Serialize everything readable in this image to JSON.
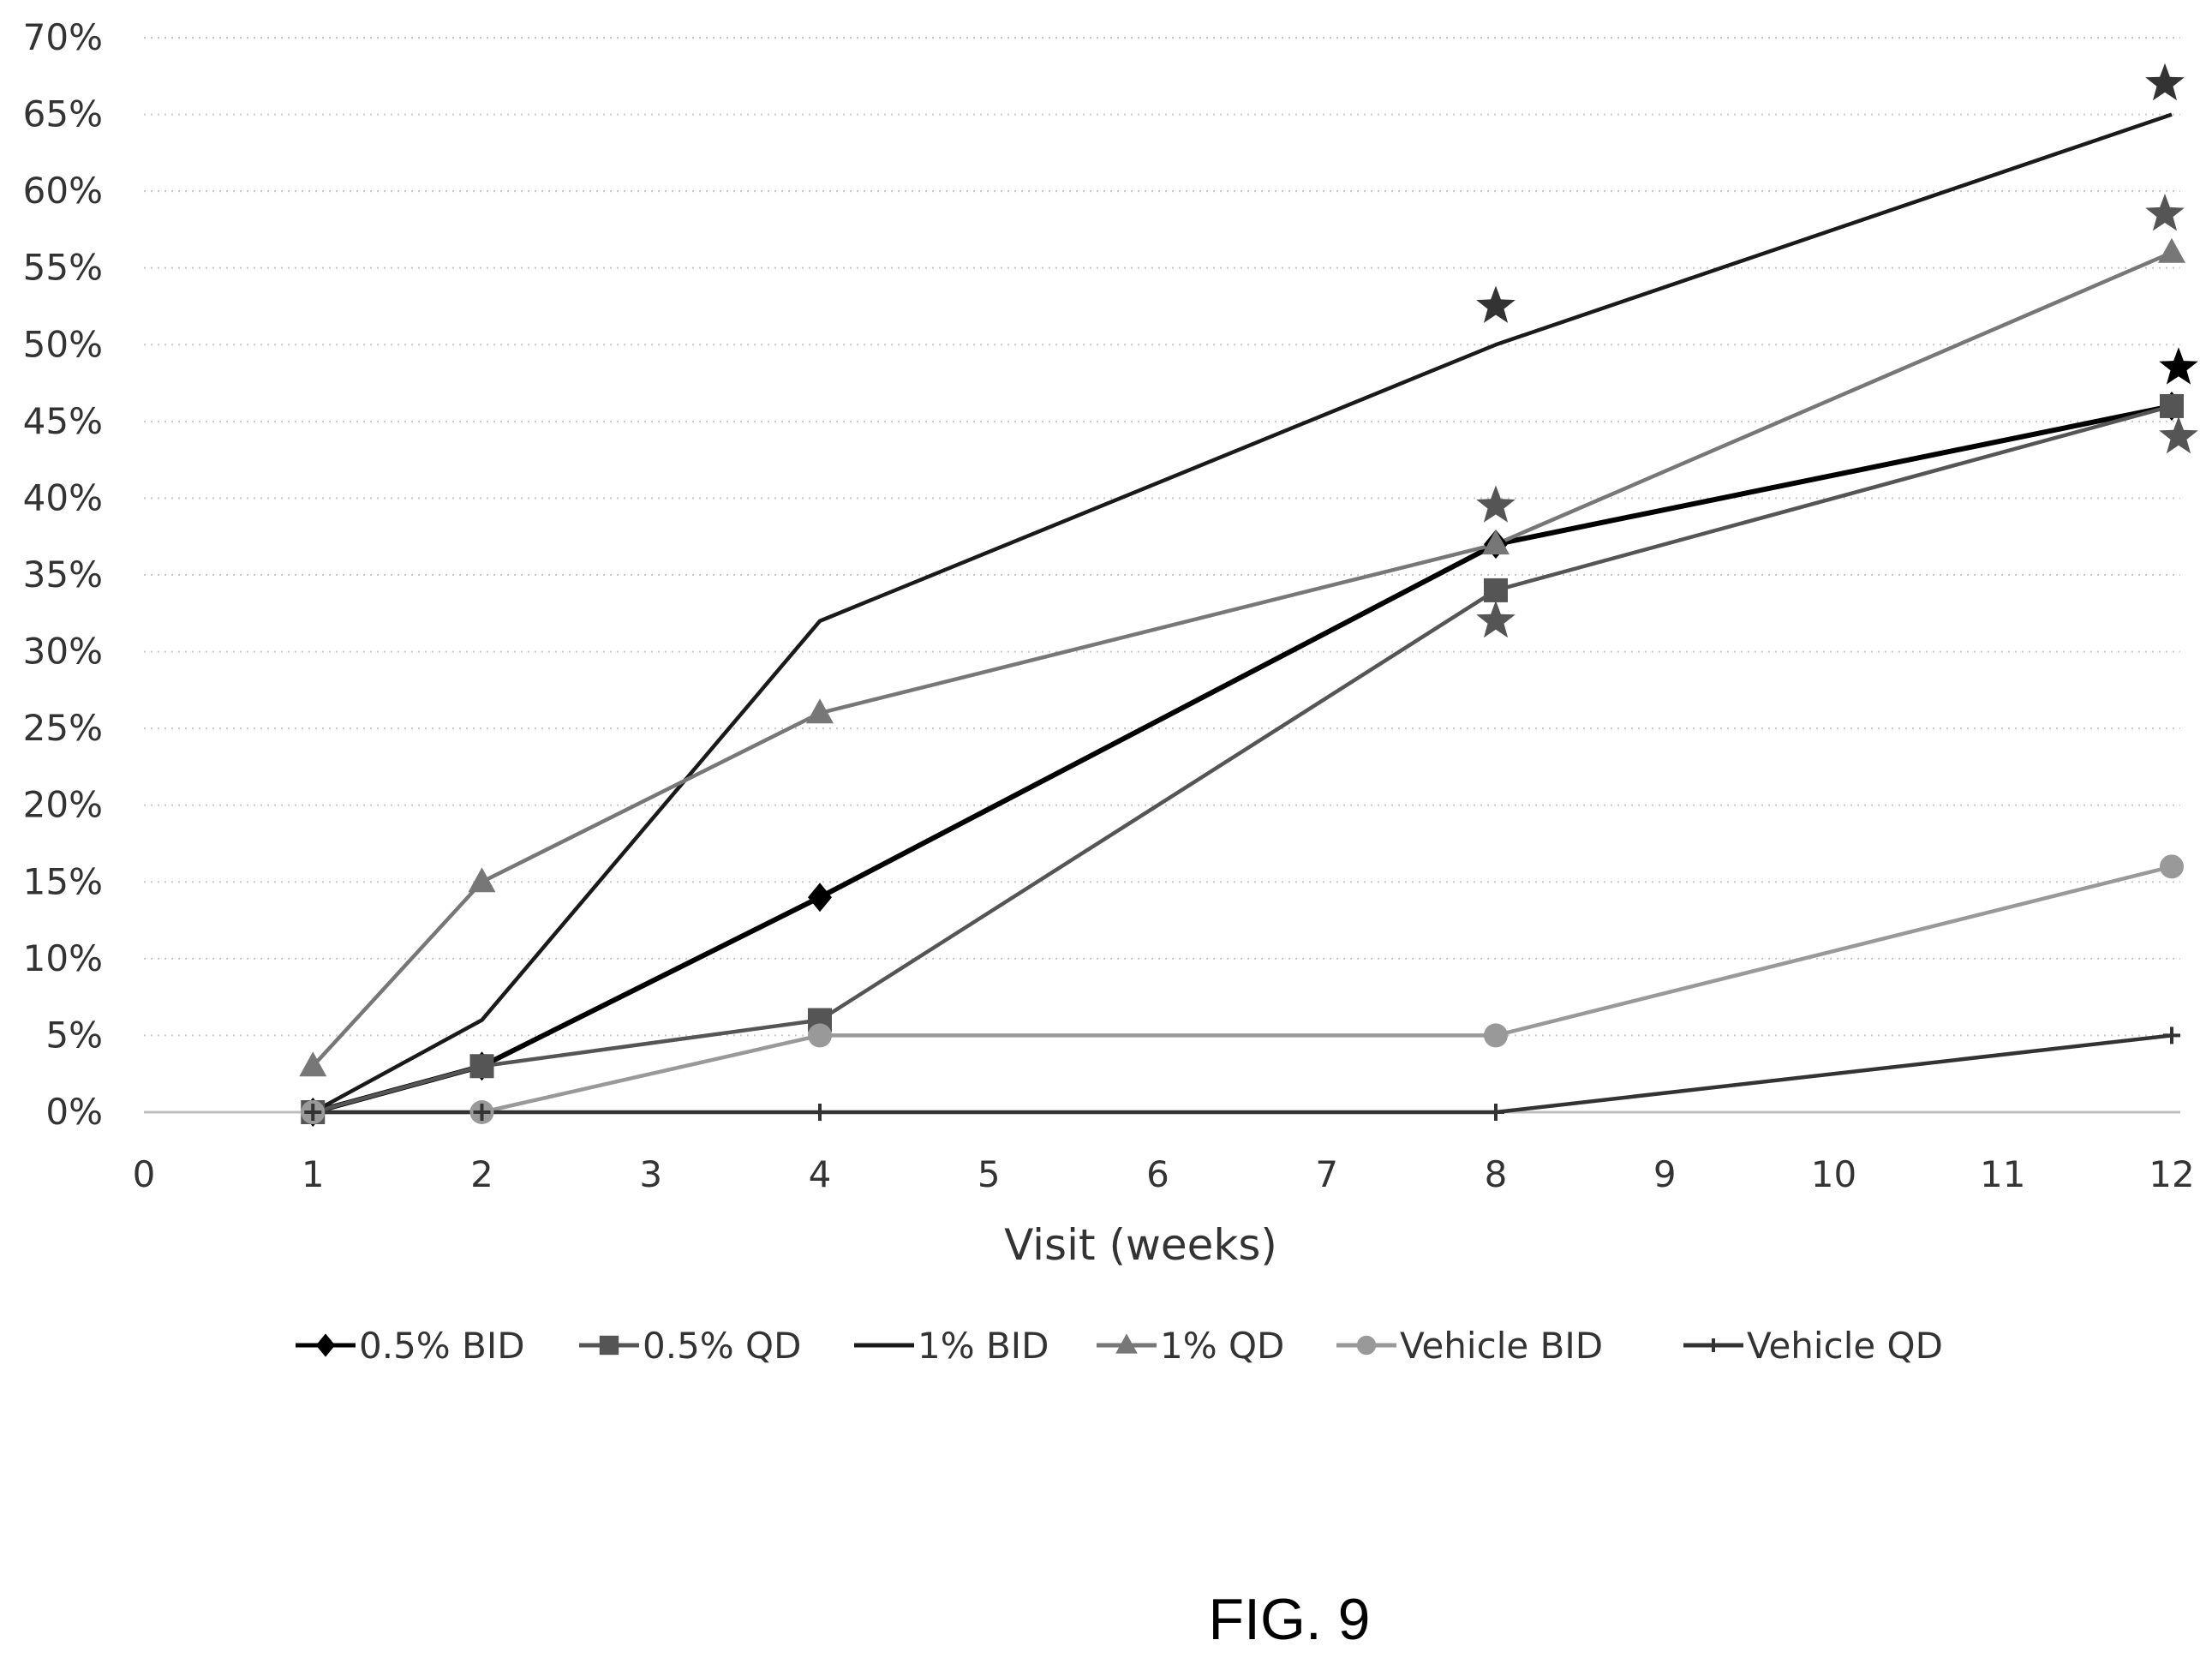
{
  "chart_data": {
    "type": "line",
    "title": "",
    "xlabel": "Visit (weeks)",
    "ylabel": "",
    "xlim": [
      0,
      12
    ],
    "ylim": [
      0,
      70
    ],
    "x_ticks": [
      "0",
      "1",
      "2",
      "3",
      "4",
      "5",
      "6",
      "7",
      "8",
      "9",
      "10",
      "11",
      "12"
    ],
    "y_ticks": [
      "0%",
      "5%",
      "10%",
      "15%",
      "20%",
      "25%",
      "30%",
      "35%",
      "40%",
      "45%",
      "50%",
      "55%",
      "60%",
      "65%",
      "70%"
    ],
    "grid": true,
    "legend_position": "bottom",
    "x": [
      1,
      2,
      4,
      8,
      12
    ],
    "series": [
      {
        "name": "0.5% BID",
        "marker": "diamond",
        "color": "#000000",
        "values": [
          0,
          3,
          14,
          37,
          46
        ]
      },
      {
        "name": "0.5% QD",
        "marker": "square",
        "color": "#555555",
        "values": [
          0,
          3,
          6,
          34,
          46
        ]
      },
      {
        "name": "1% BID",
        "marker": "none",
        "color": "#1a1a1a",
        "values": [
          0,
          6,
          32,
          50,
          65
        ]
      },
      {
        "name": "1% QD",
        "marker": "triangle",
        "color": "#777777",
        "values": [
          3,
          15,
          26,
          37,
          56
        ]
      },
      {
        "name": "Vehicle BID",
        "marker": "circle",
        "color": "#999999",
        "values": [
          0,
          0,
          5,
          5,
          16
        ]
      },
      {
        "name": "Vehicle QD",
        "marker": "plus",
        "color": "#333333",
        "values": [
          0,
          0,
          0,
          0,
          5
        ]
      }
    ],
    "significance_stars": [
      {
        "x": 8,
        "y": 52.5,
        "color": "#333333"
      },
      {
        "x": 8,
        "y": 39.5,
        "color": "#555555"
      },
      {
        "x": 8,
        "y": 32,
        "color": "#555555"
      },
      {
        "x": 12,
        "y": 67,
        "color": "#333333"
      },
      {
        "x": 12,
        "y": 58.5,
        "color": "#555555"
      },
      {
        "x": 12,
        "y": 48.5,
        "color": "#000000"
      },
      {
        "x": 12,
        "y": 44,
        "color": "#555555"
      }
    ]
  },
  "caption": "FIG. 9"
}
